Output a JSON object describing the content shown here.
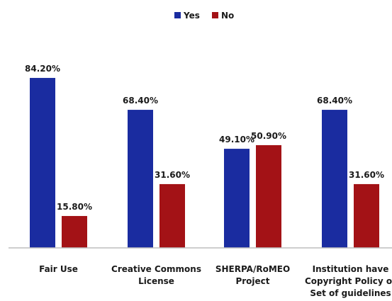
{
  "chart_data": {
    "type": "bar",
    "title": "",
    "xlabel": "",
    "ylabel": "",
    "ylim": [
      0,
      100
    ],
    "grid": false,
    "legend_placement": "top-center",
    "categories": [
      [
        "Fair Use"
      ],
      [
        "Creative Commons",
        "License"
      ],
      [
        "SHERPA/RoMEO",
        "Project"
      ],
      [
        "Institution have",
        "Copyright Policy or",
        "Set of guidelines"
      ]
    ],
    "series": [
      {
        "name": "Yes",
        "color": "#1a2ca0",
        "values": [
          84.2,
          68.4,
          49.1,
          68.4
        ],
        "labels": [
          "84.20%",
          "68.40%",
          "49.10%",
          "68.40%"
        ]
      },
      {
        "name": "No",
        "color": "#a31216",
        "values": [
          15.8,
          31.6,
          50.9,
          31.6
        ],
        "labels": [
          "15.80%",
          "31.60%",
          "50.90%",
          "31.60%"
        ]
      }
    ]
  }
}
